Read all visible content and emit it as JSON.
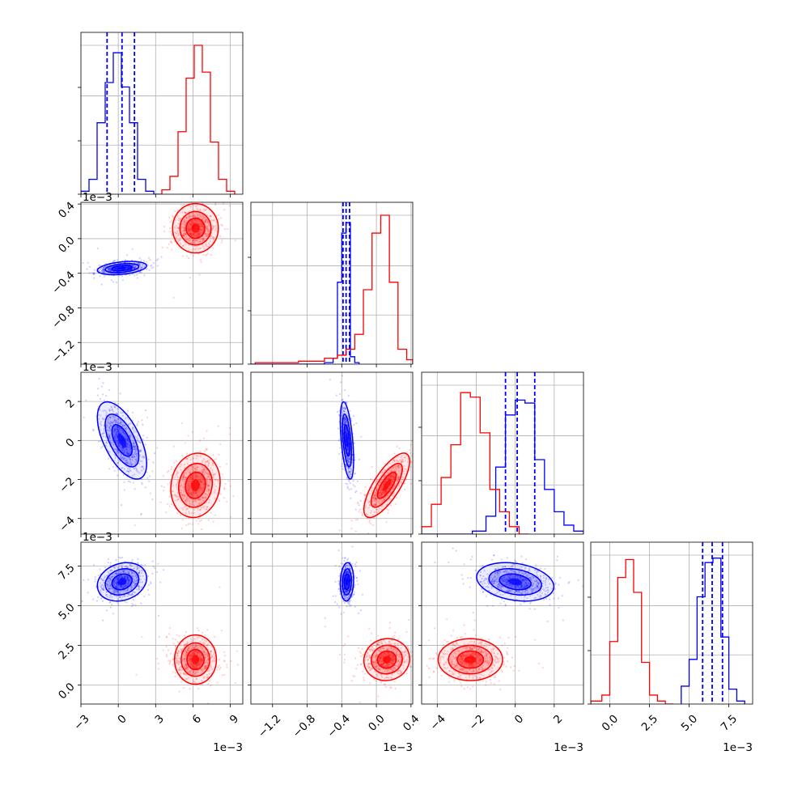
{
  "chart_data": {
    "type": "corner",
    "title": "",
    "colors": {
      "blue": "#0000ff",
      "red": "#ff0000",
      "grid": "#b0b0b0"
    },
    "parameters": [
      {
        "range": [
          -3,
          10
        ],
        "ticks": [
          -3,
          0,
          3,
          6,
          9
        ],
        "tick_labels": [
          "−3",
          "0",
          "3",
          "6",
          "9"
        ],
        "offset_label": "1e−3"
      },
      {
        "range": [
          -1.45,
          0.42
        ],
        "ticks": [
          -1.2,
          -0.8,
          -0.4,
          0.0,
          0.4
        ],
        "tick_labels": [
          "−1.2",
          "−0.8",
          "−0.4",
          "0.0",
          "0.4"
        ],
        "offset_label": "1e−3"
      },
      {
        "range": [
          -4.8,
          3.5
        ],
        "ticks": [
          -4,
          -2,
          0,
          2
        ],
        "tick_labels": [
          "−4",
          "−2",
          "0",
          "2"
        ],
        "offset_label": "1e−3"
      },
      {
        "range": [
          -1.2,
          9.0
        ],
        "ticks": [
          0.0,
          2.5,
          5.0,
          7.5
        ],
        "tick_labels": [
          "0.0",
          "2.5",
          "5.0",
          "7.5"
        ],
        "offset_label": "1e−3"
      }
    ],
    "series": [
      {
        "name": "",
        "color": "#0000ff",
        "mean": [
          0.3,
          -0.34,
          0.0,
          6.5
        ],
        "sd": [
          0.9,
          0.035,
          0.9,
          0.55
        ],
        "quantiles": [
          [
            -0.9,
            0.3,
            1.3
          ],
          [
            -0.385,
            -0.35,
            -0.31
          ],
          [
            -0.5,
            0.1,
            1.0
          ],
          [
            5.85,
            6.45,
            7.1
          ]
        ],
        "hist": [
          {
            "edges": [
              -3,
              -2.35,
              -1.7,
              -1.05,
              -0.4,
              0.25,
              0.9,
              1.55,
              2.2,
              2.85,
              3.5
            ],
            "counts": [
              0.02,
              0.1,
              0.48,
              0.75,
              0.95,
              0.72,
              0.48,
              0.1,
              0.02,
              0.0
            ]
          },
          {
            "edges": [
              -1.45,
              -0.6,
              -0.5,
              -0.45,
              -0.4,
              -0.35,
              -0.3,
              -0.25,
              -0.2
            ],
            "counts": [
              0.0,
              0.01,
              0.04,
              0.55,
              0.88,
              0.95,
              0.05,
              0.01
            ]
          },
          {
            "edges": [
              -4.8,
              -2.2,
              -1.5,
              -1.0,
              -0.5,
              0.0,
              0.5,
              1.0,
              1.5,
              2.0,
              2.5,
              3.0,
              3.5
            ],
            "counts": [
              0.0,
              0.02,
              0.12,
              0.45,
              0.8,
              0.9,
              0.88,
              0.5,
              0.3,
              0.15,
              0.06,
              0.02
            ]
          },
          {
            "edges": [
              4.5,
              5.0,
              5.5,
              6.0,
              6.5,
              7.0,
              7.5,
              8.0,
              8.5
            ],
            "counts": [
              0.12,
              0.3,
              0.72,
              0.95,
              0.98,
              0.45,
              0.1,
              0.02
            ]
          }
        ]
      },
      {
        "name": "",
        "color": "#ff0000",
        "mean": [
          6.2,
          0.12,
          -2.3,
          1.6
        ],
        "sd": [
          0.9,
          0.12,
          0.75,
          0.6
        ],
        "hist": [
          {
            "edges": [
              3.5,
              4.15,
              4.8,
              5.45,
              6.1,
              6.75,
              7.4,
              8.05,
              8.7,
              9.35
            ],
            "counts": [
              0.03,
              0.12,
              0.42,
              0.78,
              1.0,
              0.82,
              0.35,
              0.1,
              0.02
            ]
          },
          {
            "edges": [
              -1.4,
              -0.9,
              -0.6,
              -0.45,
              -0.35,
              -0.25,
              -0.15,
              -0.05,
              0.05,
              0.15,
              0.25,
              0.35,
              0.42
            ],
            "counts": [
              0.01,
              0.02,
              0.04,
              0.06,
              0.1,
              0.2,
              0.5,
              0.88,
              1.0,
              0.55,
              0.1,
              0.03
            ]
          },
          {
            "edges": [
              -4.8,
              -4.3,
              -3.8,
              -3.3,
              -2.8,
              -2.3,
              -1.8,
              -1.3,
              -0.8,
              -0.3,
              0.2,
              0.7
            ],
            "counts": [
              0.05,
              0.2,
              0.38,
              0.6,
              0.95,
              0.92,
              0.68,
              0.3,
              0.15,
              0.05,
              0.0
            ]
          },
          {
            "edges": [
              -1.2,
              -0.5,
              0.0,
              0.5,
              1.0,
              1.5,
              2.0,
              2.5,
              3.0,
              3.5,
              4.0
            ],
            "counts": [
              0.02,
              0.06,
              0.42,
              0.85,
              0.97,
              0.75,
              0.28,
              0.06,
              0.02,
              0.0
            ]
          }
        ]
      }
    ],
    "grid": true,
    "legend": "none"
  }
}
